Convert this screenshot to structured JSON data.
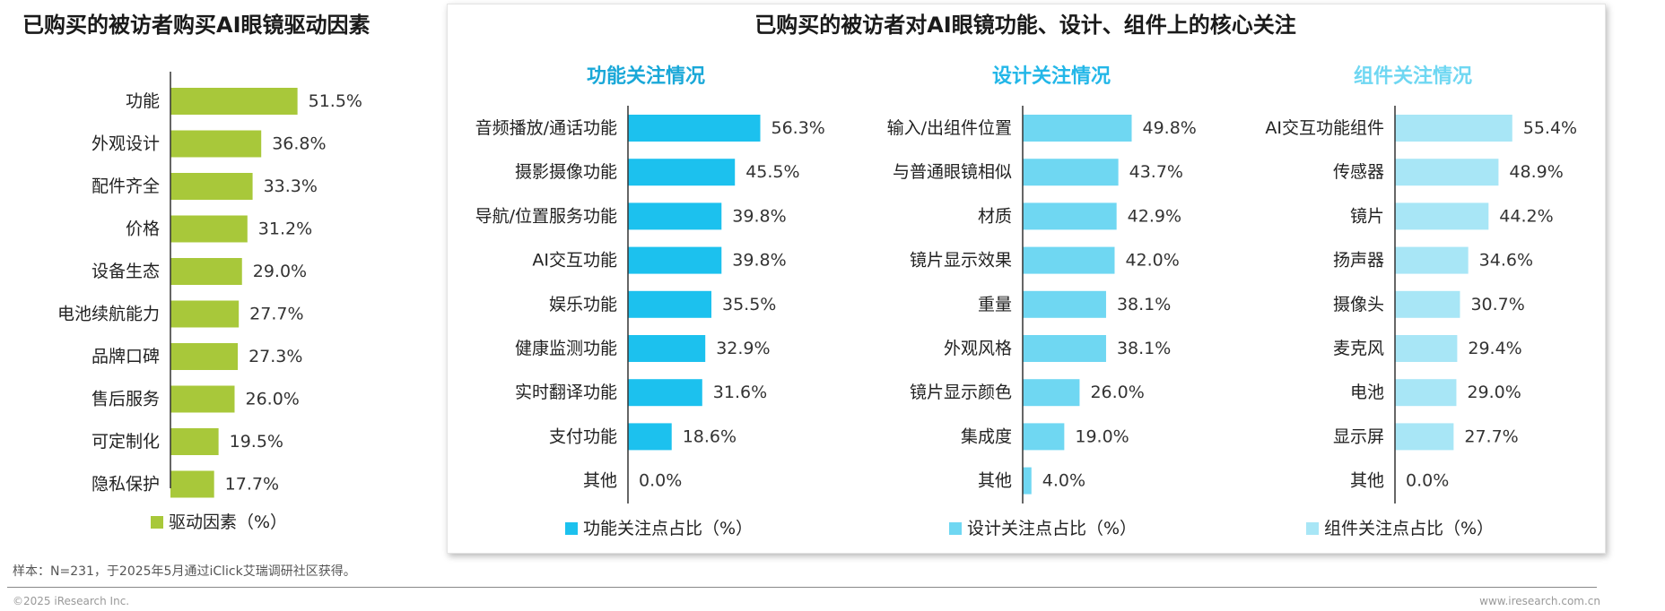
{
  "left_title": "已购买的被访者购买AI眼镜驱动因素",
  "right_title": "已购买的被访者对AI眼镜功能、设计、组件上的核心关注",
  "note": "样本：N=231，于2025年5月通过iClick艾瑞调研社区获得。",
  "footer": {
    "copyright": "©2025 iResearch Inc.",
    "website": "www.iresearch.com.cn"
  },
  "chart_data": [
    {
      "type": "bar",
      "orientation": "horizontal",
      "title": "",
      "categories": [
        "功能",
        "外观设计",
        "配件齐全",
        "价格",
        "设备生态",
        "电池续航能力",
        "品牌口碑",
        "售后服务",
        "可定制化",
        "隐私保护"
      ],
      "values": [
        51.5,
        36.8,
        33.3,
        31.2,
        29.0,
        27.7,
        27.3,
        26.0,
        19.5,
        17.7
      ],
      "value_labels": [
        "51.5%",
        "36.8%",
        "33.3%",
        "31.2%",
        "29.0%",
        "27.7%",
        "27.3%",
        "26.0%",
        "19.5%",
        "17.7%"
      ],
      "legend": "驱动因素（%）",
      "color": "#a8c83a"
    },
    {
      "type": "bar",
      "orientation": "horizontal",
      "title": "功能关注情况",
      "categories": [
        "音频播放/通话功能",
        "摄影摄像功能",
        "导航/位置服务功能",
        "AI交互功能",
        "娱乐功能",
        "健康监测功能",
        "实时翻译功能",
        "支付功能",
        "其他"
      ],
      "values": [
        56.3,
        45.5,
        39.8,
        39.8,
        35.5,
        32.9,
        31.6,
        18.6,
        0.0
      ],
      "value_labels": [
        "56.3%",
        "45.5%",
        "39.8%",
        "39.8%",
        "35.5%",
        "32.9%",
        "31.6%",
        "18.6%",
        "0.0%"
      ],
      "legend": "功能关注点占比（%）",
      "color": "#1cc1ee",
      "title_color": "#1aa8d8"
    },
    {
      "type": "bar",
      "orientation": "horizontal",
      "title": "设计关注情况",
      "categories": [
        "输入/出组件位置",
        "与普通眼镜相似",
        "材质",
        "镜片显示效果",
        "重量",
        "外观风格",
        "镜片显示颜色",
        "集成度",
        "其他"
      ],
      "values": [
        49.8,
        43.7,
        42.9,
        42.0,
        38.1,
        38.1,
        26.0,
        19.0,
        4.0
      ],
      "value_labels": [
        "49.8%",
        "43.7%",
        "42.9%",
        "42.0%",
        "38.1%",
        "38.1%",
        "26.0%",
        "19.0%",
        "4.0%"
      ],
      "legend": "设计关注点占比（%）",
      "color": "#6fd7f2",
      "title_color": "#23b7e8"
    },
    {
      "type": "bar",
      "orientation": "horizontal",
      "title": "组件关注情况",
      "categories": [
        "AI交互功能组件",
        "传感器",
        "镜片",
        "扬声器",
        "摄像头",
        "麦克风",
        "电池",
        "显示屏",
        "其他"
      ],
      "values": [
        55.4,
        48.9,
        44.2,
        34.6,
        30.7,
        29.4,
        29.0,
        27.7,
        0.0
      ],
      "value_labels": [
        "55.4%",
        "48.9%",
        "44.2%",
        "34.6%",
        "30.7%",
        "29.4%",
        "29.0%",
        "27.7%",
        "0.0%"
      ],
      "legend": "组件关注点占比（%）",
      "color": "#a8e6f6",
      "title_color": "#6fd7f2"
    }
  ]
}
